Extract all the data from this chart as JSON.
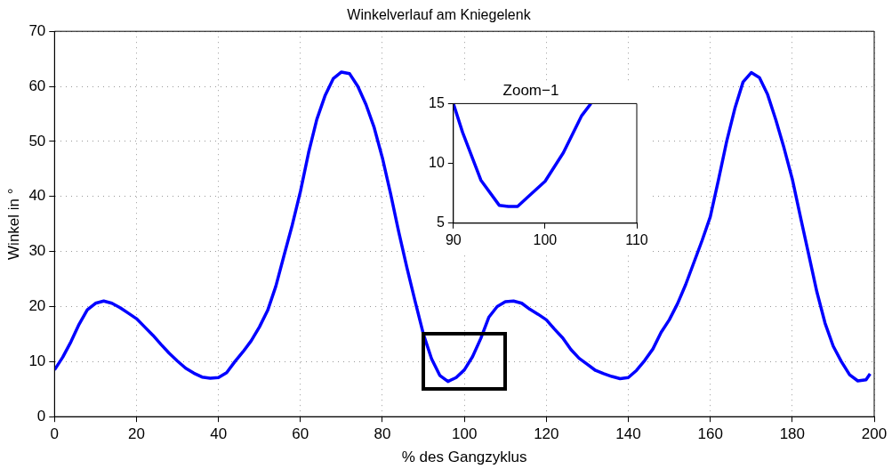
{
  "chart_data": [
    {
      "type": "line",
      "title": "Winkelverlauf am Kniegelenk",
      "xlabel": "% des Gangzyklus",
      "ylabel": "Winkel in °",
      "color": "#0000ff",
      "grid": true,
      "x": [
        0,
        2,
        4,
        6,
        8,
        10,
        12,
        14,
        16,
        18,
        20,
        22,
        24,
        26,
        28,
        30,
        32,
        34,
        36,
        38,
        40,
        42,
        44,
        46,
        48,
        50,
        52,
        54,
        56,
        58,
        60,
        62,
        64,
        66,
        68,
        70,
        72,
        74,
        76,
        78,
        80,
        82,
        84,
        86,
        88,
        90,
        92,
        94,
        96,
        98,
        100,
        102,
        104,
        106,
        108,
        110,
        112,
        114,
        116,
        118,
        120,
        122,
        124,
        126,
        128,
        130,
        132,
        134,
        136,
        138,
        140,
        142,
        144,
        146,
        148,
        150,
        152,
        154,
        156,
        158,
        160,
        162,
        164,
        166,
        168,
        170,
        172,
        174,
        176,
        178,
        180,
        182,
        184,
        186,
        188,
        190,
        192,
        194,
        196,
        198,
        199
      ],
      "values": [
        8.5,
        10.8,
        13.6,
        16.8,
        19.4,
        20.6,
        21,
        20.6,
        19.8,
        18.8,
        17.8,
        16.3,
        14.8,
        13.1,
        11.5,
        10.1,
        8.8,
        7.9,
        7.2,
        7,
        7.1,
        8,
        10,
        11.8,
        13.8,
        16.3,
        19.3,
        23.7,
        29.3,
        34.8,
        40.9,
        48,
        54,
        58.3,
        61.4,
        62.6,
        62.3,
        60,
        56.7,
        52.5,
        47,
        40.5,
        33.5,
        27,
        20.9,
        15,
        10.5,
        7.5,
        6.4,
        7.1,
        8.5,
        10.9,
        14.2,
        18.1,
        20,
        20.9,
        21,
        20.6,
        19.5,
        18.6,
        17.6,
        15.9,
        14.3,
        12.2,
        10.6,
        9.5,
        8.4,
        7.8,
        7.3,
        6.9,
        7.1,
        8.4,
        10.2,
        12.3,
        15.3,
        17.6,
        20.5,
        24,
        28,
        32,
        36.3,
        43,
        50,
        56,
        60.8,
        62.5,
        61.6,
        58.5,
        53.9,
        48.8,
        43.2,
        36.3,
        29.5,
        22.7,
        17,
        12.8,
        10,
        7.6,
        6.5,
        6.7,
        7.8
      ],
      "xlim": [
        0,
        200
      ],
      "xticks": [
        0,
        20,
        40,
        60,
        80,
        100,
        120,
        140,
        160,
        180,
        200
      ],
      "ylim": [
        0,
        70
      ],
      "yticks": [
        0,
        10,
        20,
        30,
        40,
        50,
        60,
        70
      ]
    },
    {
      "type": "line",
      "title": "Zoom−1",
      "color": "#0000ff",
      "x": [
        90,
        91,
        93,
        95,
        96,
        97,
        98,
        100,
        102,
        104,
        105
      ],
      "values": [
        15,
        12.6,
        8.6,
        6.5,
        6.4,
        6.4,
        7.1,
        8.5,
        10.9,
        14,
        15
      ],
      "xlim": [
        90,
        110
      ],
      "xticks": [
        90,
        100,
        110
      ],
      "ylim": [
        5,
        15
      ],
      "yticks": [
        5,
        10,
        15
      ]
    }
  ]
}
